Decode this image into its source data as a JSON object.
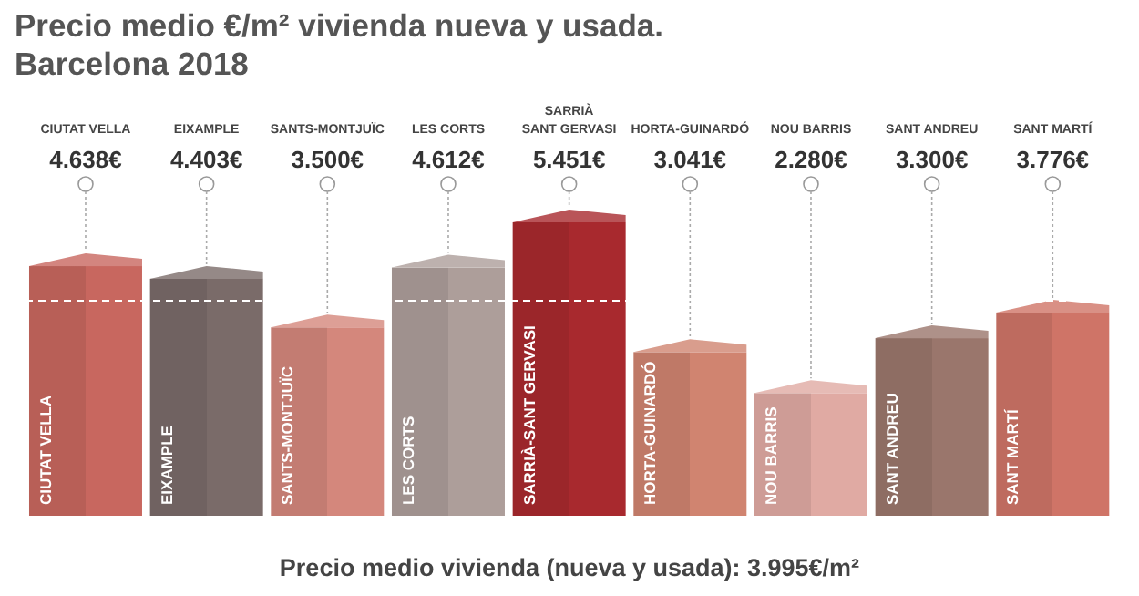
{
  "chart_data": {
    "type": "bar",
    "title": "Precio medio €/m² vivienda nueva y usada.",
    "subtitle": "Barcelona 2018",
    "categories": [
      "CIUTAT VELLA",
      "EIXAMPLE",
      "SANTS-MONTJUÏC",
      "LES CORTS",
      "SARRIÀ SANT GERVASI",
      "HORTA-GUINARDÓ",
      "NOU BARRIS",
      "SANT ANDREU",
      "SANT MARTÍ"
    ],
    "values": [
      4638,
      4403,
      3500,
      4612,
      5451,
      3041,
      2280,
      3300,
      3776
    ],
    "value_labels": [
      "4.638€",
      "4.403€",
      "3.500€",
      "4.612€",
      "5.451€",
      "3.041€",
      "2.280€",
      "3.300€",
      "3.776€"
    ],
    "colors": [
      "#c8675f",
      "#7a6b69",
      "#d4877c",
      "#ad9e9a",
      "#a8292e",
      "#d08470",
      "#e0aaa3",
      "#9a766c",
      "#cf7467"
    ],
    "ref_lines": [
      {
        "axis": "y",
        "value": 3995,
        "color": "#ffffff",
        "line_style": "dashed"
      }
    ],
    "annotations": [
      "CIUTAT VELLA",
      "EIXAMPLE",
      "SANTS-MONTJUÏC",
      "LES CORTS",
      "SARRIÀ-SANT GERVASI",
      "HORTA-GUINARDÓ",
      "NOU BARRIS",
      "SANT ANDREU",
      "SANT MARTÍ",
      "Precio medio vivienda (nueva y usada): 3.995€/m²"
    ]
  }
}
